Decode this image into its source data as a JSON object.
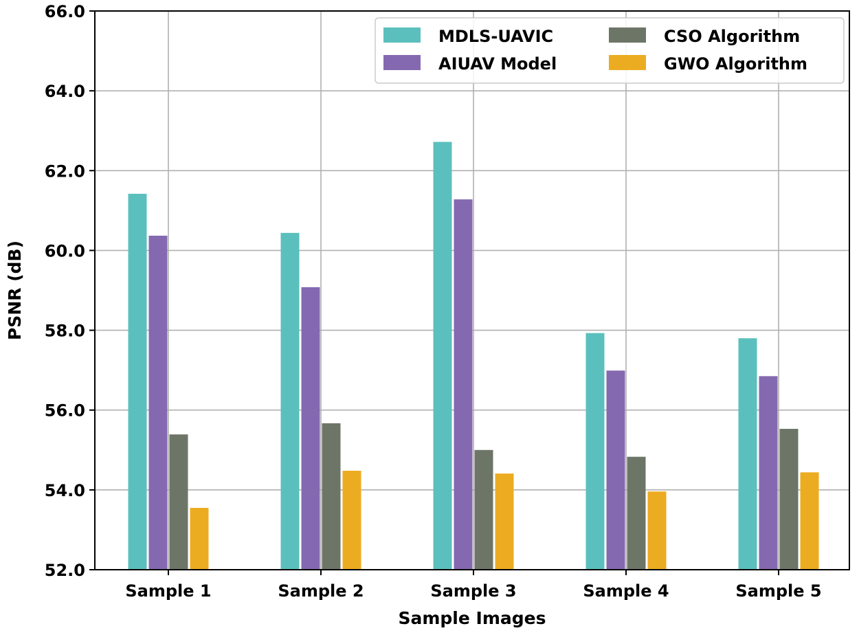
{
  "chart_data": {
    "type": "bar",
    "title": "",
    "xlabel": "Sample Images",
    "ylabel": "PSNR (dB)",
    "ylim": [
      52.0,
      66.0
    ],
    "yticks": [
      "52.0",
      "54.0",
      "56.0",
      "58.0",
      "60.0",
      "62.0",
      "64.0",
      "66.0"
    ],
    "categories": [
      "Sample 1",
      "Sample 2",
      "Sample 3",
      "Sample 4",
      "Sample 5"
    ],
    "grid": true,
    "legend_position": "top-right",
    "series": [
      {
        "name": "MDLS-UAVIC",
        "color": "#5bc0bd",
        "values": [
          61.42,
          60.44,
          62.72,
          57.93,
          57.8
        ]
      },
      {
        "name": "AIUAV Model",
        "color": "#8469b0",
        "values": [
          60.37,
          59.08,
          61.28,
          56.99,
          56.85
        ]
      },
      {
        "name": "CSO Algorithm",
        "color": "#6d7567",
        "values": [
          55.39,
          55.67,
          55.0,
          54.83,
          55.53
        ]
      },
      {
        "name": "GWO Algorithm",
        "color": "#ecac22",
        "values": [
          53.55,
          54.48,
          54.41,
          53.96,
          54.44
        ]
      }
    ]
  }
}
